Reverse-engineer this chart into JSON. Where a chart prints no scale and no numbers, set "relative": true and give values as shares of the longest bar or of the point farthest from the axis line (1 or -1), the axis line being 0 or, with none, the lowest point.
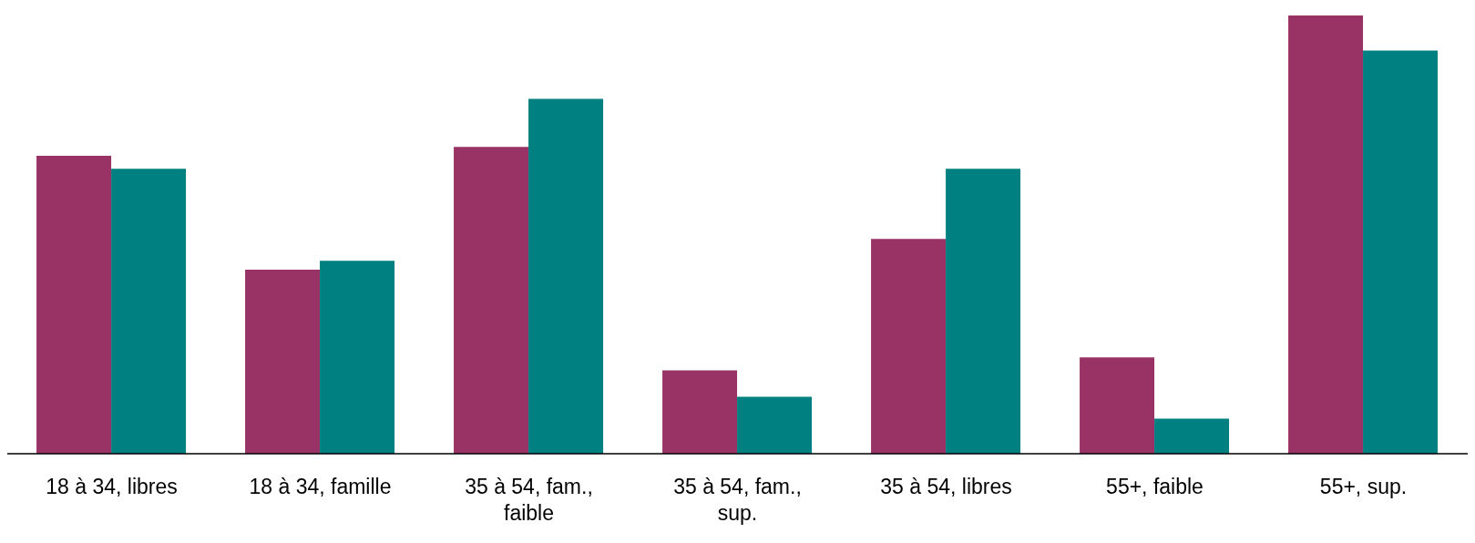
{
  "chart_data": {
    "type": "bar",
    "relative": true,
    "categories": [
      "18 à 34, libres",
      "18 à 34, famille",
      "35 à 54, fam., faible",
      "35 à 54, fam., sup.",
      "35 à 54, libres",
      "55+, faible",
      "55+, sup."
    ],
    "series": [
      {
        "color": "#993366",
        "values": [
          0.68,
          0.42,
          0.7,
          0.19,
          0.49,
          0.22,
          1
        ]
      },
      {
        "color": "#008080",
        "values": [
          0.65,
          0.44,
          0.81,
          0.13,
          0.65,
          0.08,
          0.92
        ]
      }
    ],
    "grid": false,
    "legend": false
  }
}
